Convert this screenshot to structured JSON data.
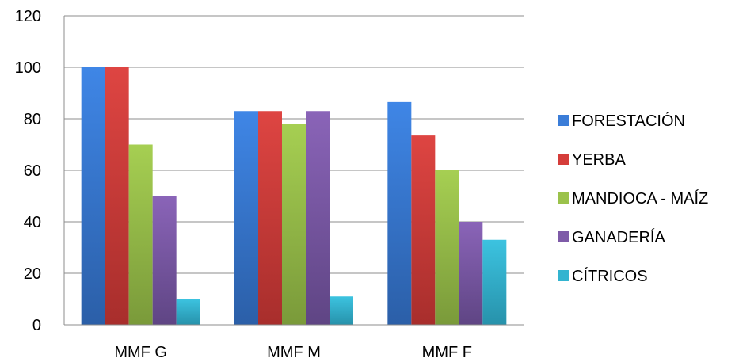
{
  "chart_data": {
    "type": "bar",
    "categories": [
      "MMF G",
      "MMF M",
      "MMF F"
    ],
    "series": [
      {
        "name": "FORESTACIÓN",
        "color": "#3B7DD8",
        "values": [
          100,
          83,
          86.5
        ]
      },
      {
        "name": "YERBA",
        "color": "#D53D3A",
        "values": [
          100,
          83,
          73.5
        ]
      },
      {
        "name": "MANDIOCA - MAÍZ",
        "color": "#9BC24B",
        "values": [
          70,
          78,
          60
        ]
      },
      {
        "name": "GANADERÍA",
        "color": "#7E5BA8",
        "values": [
          50,
          83,
          40
        ]
      },
      {
        "name": "CÍTRICOS",
        "color": "#33B4D0",
        "values": [
          10,
          11,
          33
        ]
      }
    ],
    "yticks": [
      "0",
      "20",
      "40",
      "60",
      "80",
      "100",
      "120"
    ],
    "ylim": [
      0,
      120
    ],
    "grid": true,
    "legend_position": "right"
  }
}
